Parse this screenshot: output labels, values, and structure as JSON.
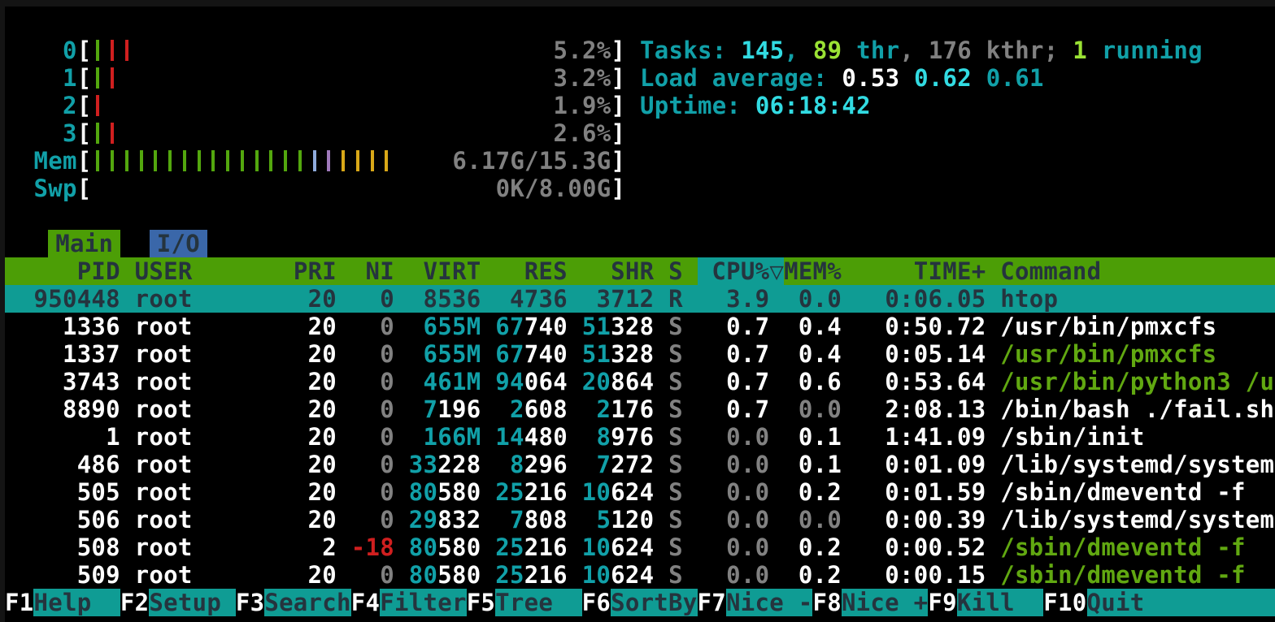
{
  "palette": {
    "cyan": "#11a0a8",
    "cyan_bright": "#32dbe2",
    "lime_green": "#9ae234",
    "command_green": "#61a811",
    "white": "#ffffff",
    "gray": "#818181",
    "red": "#d01f1f",
    "header_green_bg": "#4c9e06",
    "tab_blue_bg": "#3a67a9",
    "selection_teal_bg": "#0f9c94",
    "dark_text": "#25343e",
    "tick_green": "#53a70e",
    "tick_red": "#d01f1f",
    "tick_blue": "#8fabdc",
    "tick_purple": "#9f79bb",
    "tick_yellow": "#d9a818"
  },
  "meters": {
    "bracket_open": "[",
    "bracket_close": "]",
    "rows": [
      {
        "name": "cpu-meter-0",
        "label": "0",
        "value": "5.2%",
        "ticks": [
          "g",
          "r",
          "r"
        ]
      },
      {
        "name": "cpu-meter-1",
        "label": "1",
        "value": "3.2%",
        "ticks": [
          "g",
          "r"
        ]
      },
      {
        "name": "cpu-meter-2",
        "label": "2",
        "value": "1.9%",
        "ticks": [
          "r"
        ]
      },
      {
        "name": "cpu-meter-3",
        "label": "3",
        "value": "2.6%",
        "ticks": [
          "g",
          "r"
        ]
      },
      {
        "name": "memory-meter",
        "label": "Mem",
        "value": "6.17G/15.3G",
        "ticks": [
          "g",
          "g",
          "g",
          "g",
          "g",
          "g",
          "g",
          "g",
          "g",
          "g",
          "g",
          "g",
          "g",
          "g",
          "g",
          "b",
          "p",
          "y",
          "y",
          "y",
          "y"
        ]
      },
      {
        "name": "swap-meter",
        "label": "Swp",
        "value": "0K/8.00G",
        "ticks": []
      }
    ]
  },
  "summary": {
    "tasks_line": [
      [
        "Tasks: ",
        "cy"
      ],
      [
        "145",
        "cb"
      ],
      [
        ", ",
        "cy"
      ],
      [
        "89",
        "lg"
      ],
      [
        " thr",
        "cy"
      ],
      [
        ", ",
        "g"
      ],
      [
        "176 kthr; ",
        "g"
      ],
      [
        "1",
        "lg"
      ],
      [
        " running",
        "cy"
      ]
    ],
    "load_line": [
      [
        "Load average: ",
        "cy"
      ],
      [
        "0.53",
        "wb"
      ],
      [
        " ",
        "cy"
      ],
      [
        "0.62",
        "cb"
      ],
      [
        " ",
        "cy"
      ],
      [
        "0.61",
        "cy"
      ]
    ],
    "uptime_line": [
      [
        "Uptime: ",
        "cy"
      ],
      [
        "06:18:42",
        "cb"
      ]
    ]
  },
  "tabs": [
    {
      "label": "Main",
      "active": true
    },
    {
      "label": "I/O",
      "active": false
    }
  ],
  "table": {
    "columns": [
      "PID",
      "USER",
      "PRI",
      "NI",
      "VIRT",
      "RES",
      "SHR",
      "S",
      "CPU%",
      "MEM%",
      "TIME+",
      "Command"
    ],
    "sort_column": "CPU%",
    "sort_indicator": "▽",
    "rows": [
      {
        "pid": "950448",
        "user": "root",
        "pri": "20",
        "ni": "0",
        "virt": "8536",
        "res": "4736",
        "shr": "3712",
        "s": "R",
        "cpu": "3.9",
        "mem": "0.0",
        "time": "0:06.05",
        "cmd": "htop",
        "selected": true,
        "thread": false
      },
      {
        "pid": "1336",
        "user": "root",
        "pri": "20",
        "ni": "0",
        "virt": "655M",
        "res": "67740",
        "shr": "51328",
        "s": "S",
        "cpu": "0.7",
        "mem": "0.4",
        "time": "0:50.72",
        "cmd": "/usr/bin/pmxcfs",
        "selected": false,
        "thread": false
      },
      {
        "pid": "1337",
        "user": "root",
        "pri": "20",
        "ni": "0",
        "virt": "655M",
        "res": "67740",
        "shr": "51328",
        "s": "S",
        "cpu": "0.7",
        "mem": "0.4",
        "time": "0:05.14",
        "cmd": "/usr/bin/pmxcfs",
        "selected": false,
        "thread": true
      },
      {
        "pid": "3743",
        "user": "root",
        "pri": "20",
        "ni": "0",
        "virt": "461M",
        "res": "94064",
        "shr": "20864",
        "s": "S",
        "cpu": "0.7",
        "mem": "0.6",
        "time": "0:53.64",
        "cmd": "/usr/bin/python3 /u",
        "selected": false,
        "thread": true
      },
      {
        "pid": "8890",
        "user": "root",
        "pri": "20",
        "ni": "0",
        "virt": "7196",
        "res": "2608",
        "shr": "2176",
        "s": "S",
        "cpu": "0.7",
        "mem": "0.0",
        "time": "2:08.13",
        "cmd": "/bin/bash ./fail.sh",
        "selected": false,
        "thread": false
      },
      {
        "pid": "1",
        "user": "root",
        "pri": "20",
        "ni": "0",
        "virt": "166M",
        "res": "14480",
        "shr": "8976",
        "s": "S",
        "cpu": "0.0",
        "mem": "0.1",
        "time": "1:41.09",
        "cmd": "/sbin/init",
        "selected": false,
        "thread": false
      },
      {
        "pid": "486",
        "user": "root",
        "pri": "20",
        "ni": "0",
        "virt": "33228",
        "res": "8296",
        "shr": "7272",
        "s": "S",
        "cpu": "0.0",
        "mem": "0.1",
        "time": "0:01.09",
        "cmd": "/lib/systemd/system",
        "selected": false,
        "thread": false
      },
      {
        "pid": "505",
        "user": "root",
        "pri": "20",
        "ni": "0",
        "virt": "80580",
        "res": "25216",
        "shr": "10624",
        "s": "S",
        "cpu": "0.0",
        "mem": "0.2",
        "time": "0:01.59",
        "cmd": "/sbin/dmeventd -f",
        "selected": false,
        "thread": false
      },
      {
        "pid": "506",
        "user": "root",
        "pri": "20",
        "ni": "0",
        "virt": "29832",
        "res": "7808",
        "shr": "5120",
        "s": "S",
        "cpu": "0.0",
        "mem": "0.0",
        "time": "0:00.39",
        "cmd": "/lib/systemd/system",
        "selected": false,
        "thread": false
      },
      {
        "pid": "508",
        "user": "root",
        "pri": "2",
        "ni": "-18",
        "virt": "80580",
        "res": "25216",
        "shr": "10624",
        "s": "S",
        "cpu": "0.0",
        "mem": "0.2",
        "time": "0:00.52",
        "cmd": "/sbin/dmeventd -f",
        "selected": false,
        "thread": true
      },
      {
        "pid": "509",
        "user": "root",
        "pri": "20",
        "ni": "0",
        "virt": "80580",
        "res": "25216",
        "shr": "10624",
        "s": "S",
        "cpu": "0.0",
        "mem": "0.2",
        "time": "0:00.15",
        "cmd": "/sbin/dmeventd -f",
        "selected": false,
        "thread": true
      }
    ]
  },
  "fnbar": [
    {
      "key": "F1",
      "label": "Help"
    },
    {
      "key": "F2",
      "label": "Setup"
    },
    {
      "key": "F3",
      "label": "Search"
    },
    {
      "key": "F4",
      "label": "Filter"
    },
    {
      "key": "F5",
      "label": "Tree"
    },
    {
      "key": "F6",
      "label": "SortBy"
    },
    {
      "key": "F7",
      "label": "Nice -"
    },
    {
      "key": "F8",
      "label": "Nice +"
    },
    {
      "key": "F9",
      "label": "Kill"
    },
    {
      "key": "F10",
      "label": "Quit"
    }
  ]
}
